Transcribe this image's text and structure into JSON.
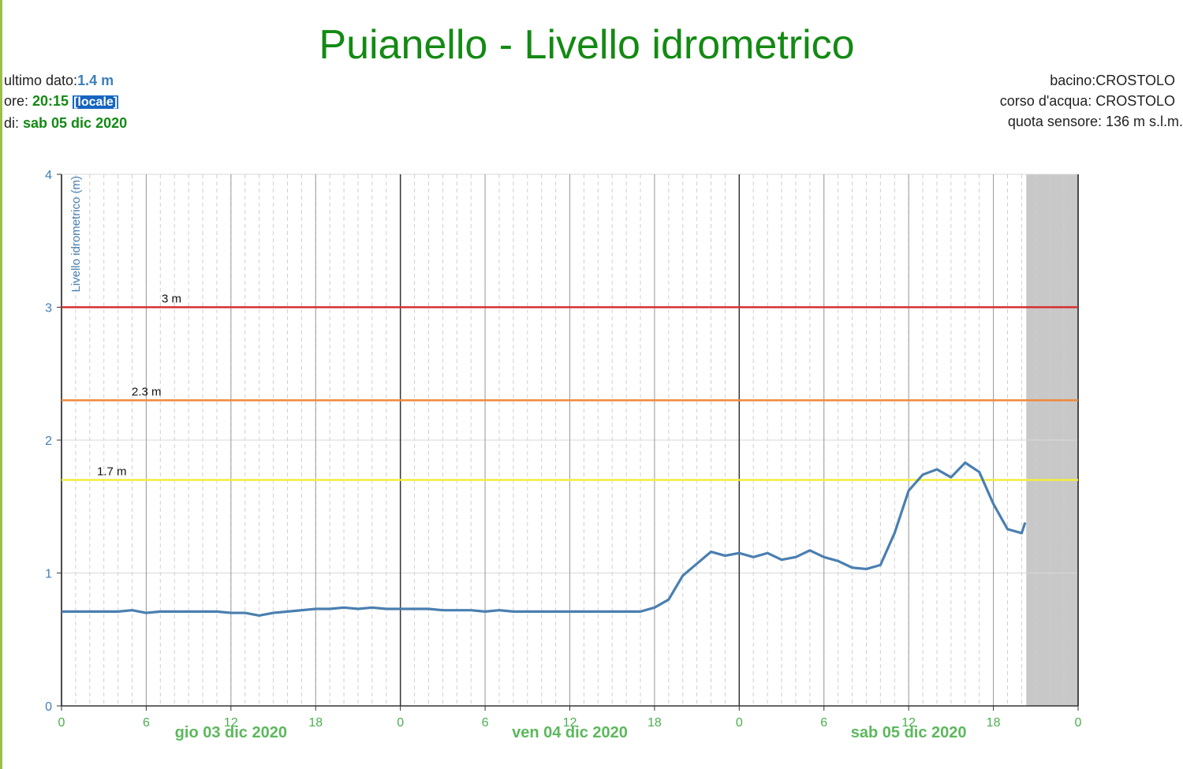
{
  "chart_data": {
    "type": "line",
    "title": "Puianello - Livello idrometrico",
    "info_left": [
      [
        "ultimo dato:",
        "1.4 m"
      ],
      [
        "ore: ",
        "20:15"
      ],
      [
        "di: ",
        "sab 05 dic 2020"
      ]
    ],
    "local_tag": "[locale]",
    "info_right": [
      "bacino:CROSTOLO",
      "corso d'acqua: CROSTOLO",
      "quota sensore: 136 m s.l.m."
    ],
    "y_label": "Livello idrometrico (m)",
    "xlim": [
      0,
      72
    ],
    "ylim": [
      0,
      4
    ],
    "yticks": [
      0,
      1,
      2,
      3,
      4
    ],
    "xticks": [
      0,
      6,
      12,
      18,
      {
        "value": 24,
        "label": "0"
      },
      {
        "value": 30,
        "label": "6"
      },
      {
        "value": 36,
        "label": "12"
      },
      {
        "value": 42,
        "label": "18"
      },
      {
        "value": 48,
        "label": "0"
      },
      {
        "value": 54,
        "label": "6"
      },
      {
        "value": 60,
        "label": "12"
      },
      {
        "value": 66,
        "label": "18"
      },
      {
        "value": 72,
        "label": "0"
      }
    ],
    "xminorticks": [
      0,
      1,
      2,
      3,
      4,
      5,
      6,
      7,
      8,
      9,
      10,
      11,
      12,
      13,
      14,
      15,
      16,
      17,
      18,
      19,
      20,
      21,
      22,
      23,
      24,
      25,
      26,
      27,
      28,
      29,
      30,
      31,
      32,
      33,
      34,
      35,
      36,
      37,
      38,
      39,
      40,
      41,
      42,
      43,
      44,
      45,
      46,
      47,
      48,
      49,
      50,
      51,
      52,
      53,
      54,
      55,
      56,
      57,
      58,
      59,
      60,
      61,
      62,
      63,
      64,
      65,
      66,
      67,
      68,
      69,
      70,
      71,
      72
    ],
    "day_labels": [
      {
        "value": 12,
        "label": "gio 03 dic 2020"
      },
      {
        "value": 36,
        "label": "ven 04 dic 2020"
      },
      {
        "value": 60,
        "label": "sab 05 dic 2020"
      }
    ],
    "thresholds": {
      "values": [
        3,
        2.3,
        1.7
      ],
      "value_labels": [
        "3 m",
        "2.3 m",
        "1.7 m"
      ],
      "colors": [
        "#d62f2f",
        "#f0883a",
        "#f2ee3c"
      ]
    },
    "shaded_from": 68.33,
    "grid": true,
    "series": [
      {
        "name": "Livello idrometrico",
        "color": "#4a7fb0",
        "x": [
          0,
          1,
          2,
          3,
          4,
          5,
          6,
          7,
          8,
          9,
          10,
          11,
          12,
          13,
          14,
          15,
          16,
          17,
          18,
          19,
          20,
          21,
          22,
          23,
          24,
          25,
          26,
          27,
          28,
          29,
          30,
          31,
          32,
          33,
          34,
          35,
          36,
          37,
          38,
          39,
          40,
          41,
          42,
          43,
          44,
          45,
          46,
          47,
          48,
          49,
          50,
          51,
          52,
          53,
          54,
          55,
          56,
          57,
          58,
          59,
          60,
          61,
          62,
          63,
          64,
          65,
          66,
          67,
          68,
          68.25
        ],
        "values": [
          0.71,
          0.71,
          0.71,
          0.71,
          0.71,
          0.72,
          0.7,
          0.71,
          0.71,
          0.71,
          0.71,
          0.71,
          0.7,
          0.7,
          0.68,
          0.7,
          0.71,
          0.72,
          0.73,
          0.73,
          0.74,
          0.73,
          0.74,
          0.73,
          0.73,
          0.73,
          0.73,
          0.72,
          0.72,
          0.72,
          0.71,
          0.72,
          0.71,
          0.71,
          0.71,
          0.71,
          0.71,
          0.71,
          0.71,
          0.71,
          0.71,
          0.71,
          0.74,
          0.8,
          0.98,
          1.07,
          1.16,
          1.13,
          1.15,
          1.12,
          1.15,
          1.1,
          1.12,
          1.17,
          1.12,
          1.09,
          1.04,
          1.03,
          1.06,
          1.3,
          1.62,
          1.74,
          1.78,
          1.72,
          1.83,
          1.76,
          1.52,
          1.33,
          1.3,
          1.38
        ]
      }
    ]
  }
}
